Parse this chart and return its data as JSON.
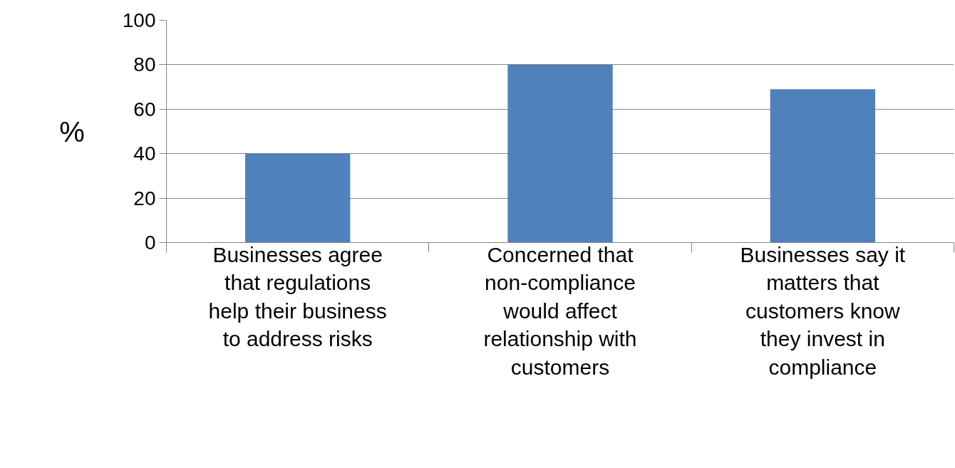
{
  "chart_data": {
    "type": "bar",
    "ylabel": "%",
    "categories": [
      "Businesses agree\nthat regulations\nhelp their business\nto address risks",
      "Concerned that\nnon-compliance\nwould affect\nrelationship with\ncustomers",
      "Businesses say it\nmatters that\ncustomers know\nthey invest in\ncompliance"
    ],
    "values": [
      40,
      80,
      69
    ],
    "color": "#4f81bd",
    "ylim": [
      0,
      100
    ],
    "yticks": [
      0,
      20,
      40,
      60,
      80,
      100
    ],
    "grid": "y"
  }
}
